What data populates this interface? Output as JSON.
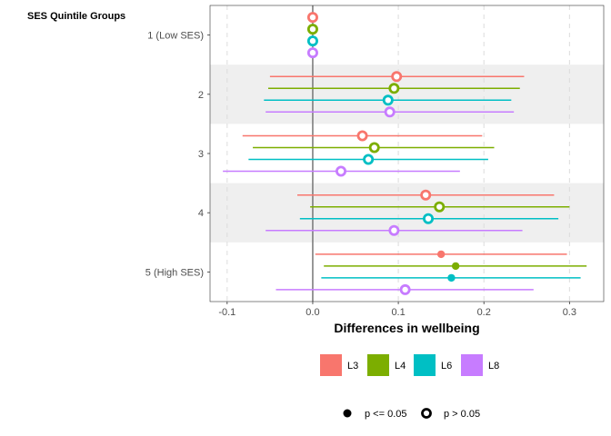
{
  "chart_data": {
    "type": "scatter",
    "subtype": "dot-and-whisker",
    "y_title": "SES Quintile Groups",
    "xlabel": "Differences in wellbeing",
    "xlim": [
      -0.12,
      0.34
    ],
    "x_ticks": [
      -0.1,
      0.0,
      0.1,
      0.2,
      0.3
    ],
    "x_tick_labels": [
      "-0.1",
      "0.0",
      "0.1",
      "0.2",
      "0.3"
    ],
    "reference_line_x": 0,
    "grid": "vertical-dashed",
    "alternating_row_bands": true,
    "categories": [
      "1 (Low SES)",
      "2",
      "3",
      "4",
      "5 (High SES)"
    ],
    "series": [
      {
        "name": "L3",
        "color": "#F8766D",
        "estimate": [
          0.0,
          0.098,
          0.058,
          0.132,
          0.15
        ],
        "lower": [
          0.0,
          -0.05,
          -0.082,
          -0.018,
          0.003
        ],
        "upper": [
          0.0,
          0.247,
          0.198,
          0.282,
          0.297
        ],
        "significant": [
          false,
          false,
          false,
          false,
          true
        ]
      },
      {
        "name": "L4",
        "color": "#7CAE00",
        "estimate": [
          0.0,
          0.095,
          0.072,
          0.148,
          0.167
        ],
        "lower": [
          0.0,
          -0.052,
          -0.07,
          -0.003,
          0.013
        ],
        "upper": [
          0.0,
          0.242,
          0.212,
          0.3,
          0.32
        ],
        "significant": [
          false,
          false,
          false,
          false,
          true
        ]
      },
      {
        "name": "L6",
        "color": "#00BFC4",
        "estimate": [
          0.0,
          0.088,
          0.065,
          0.135,
          0.162
        ],
        "lower": [
          0.0,
          -0.057,
          -0.075,
          -0.015,
          0.01
        ],
        "upper": [
          0.0,
          0.232,
          0.205,
          0.287,
          0.313
        ],
        "significant": [
          false,
          false,
          false,
          false,
          true
        ]
      },
      {
        "name": "L8",
        "color": "#C77CFF",
        "estimate": [
          0.0,
          0.09,
          0.033,
          0.095,
          0.108
        ],
        "lower": [
          0.0,
          -0.055,
          -0.105,
          -0.055,
          -0.043
        ],
        "upper": [
          0.0,
          0.235,
          0.172,
          0.245,
          0.258
        ],
        "significant": [
          false,
          false,
          false,
          false,
          false
        ]
      }
    ],
    "legend_colors": {
      "position": "bottom",
      "items": [
        "L3",
        "L4",
        "L6",
        "L8"
      ]
    },
    "legend_shapes": {
      "position": "bottom",
      "items": [
        "p <= 0.05",
        "p > 0.05"
      ]
    }
  }
}
